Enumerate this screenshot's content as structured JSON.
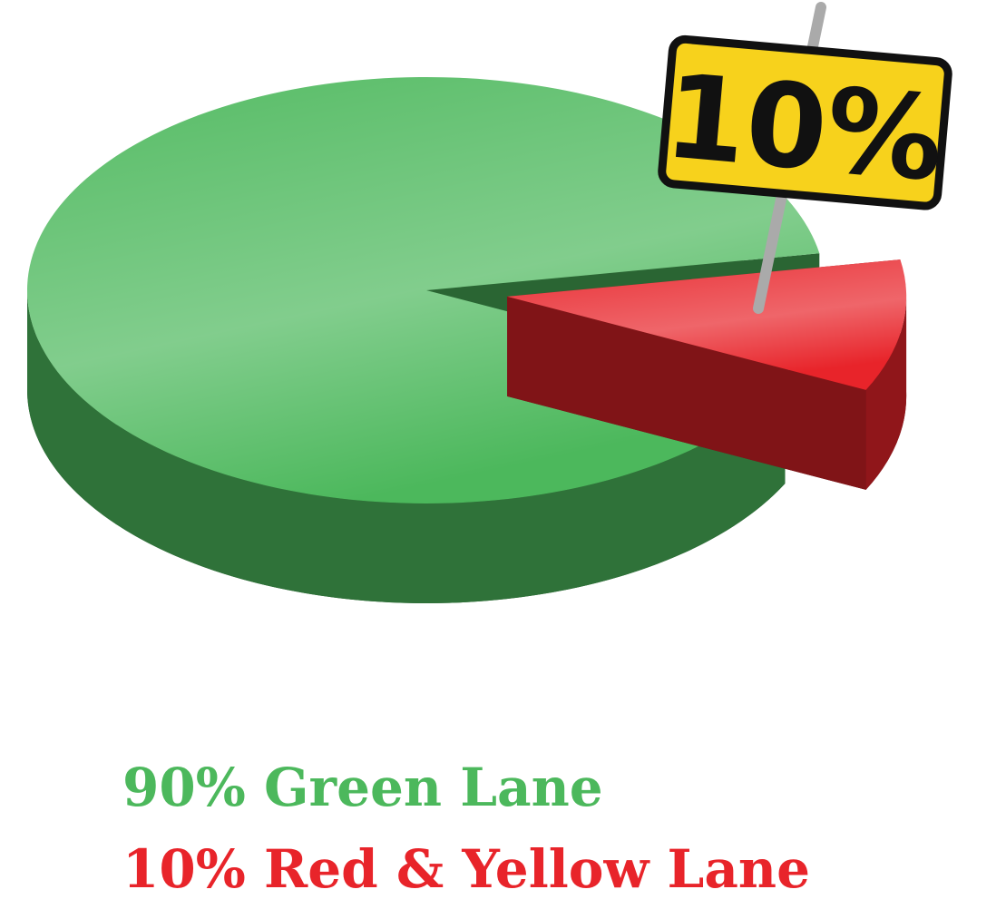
{
  "chart_data": {
    "type": "pie",
    "categories": [
      "90% Green Lane",
      "10% Red & Yellow Lane"
    ],
    "values": [
      90,
      10
    ],
    "value_labels": [
      null,
      "10%"
    ],
    "colors": [
      "#4cb85c",
      "#e8242a"
    ]
  }
}
